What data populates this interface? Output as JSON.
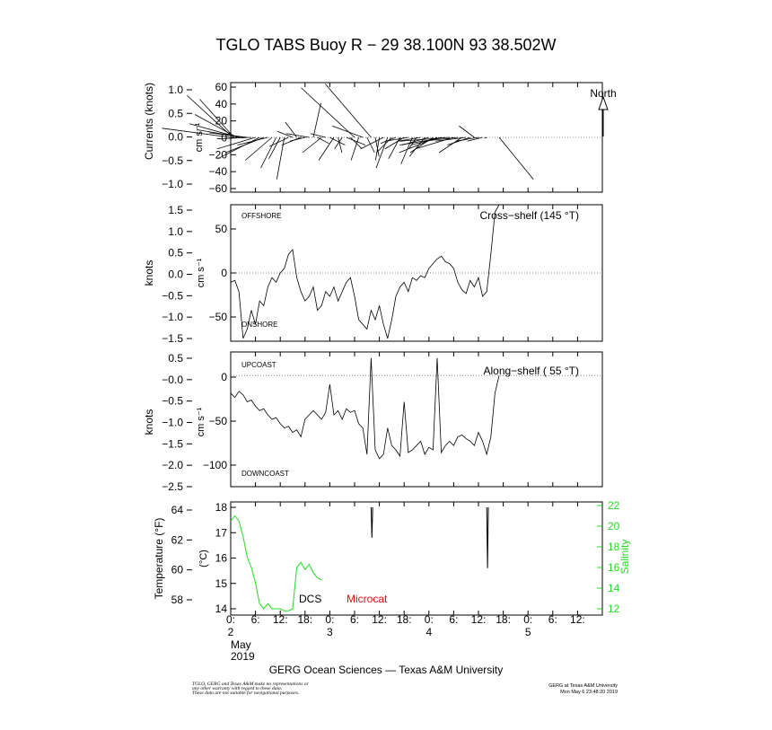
{
  "title": "TGLO TABS Buoy R − 29 38.100N  93 38.502W",
  "footer": {
    "institution": "GERG Ocean Sciences — Texas A&M University",
    "disclaimer": [
      "TGLO, GERG and Texas A&M make no representations or",
      "any other warranty with regard to these data.",
      "These data are not suitable for navigational purposes."
    ],
    "credit": "GERG at Texas A&M University",
    "timestamp": "Mon May  6 23:48:20 2019"
  },
  "colors": {
    "axes": "#000000",
    "salinity": "#22dd22",
    "microcat": "#dd1111",
    "zero_line": "#888888"
  },
  "x_axis": {
    "range": [
      0,
      90
    ],
    "ticks": [
      {
        "x": 0,
        "label": "0:",
        "day": "2"
      },
      {
        "x": 6,
        "label": "6:",
        "day": ""
      },
      {
        "x": 12,
        "label": "12:",
        "day": ""
      },
      {
        "x": 18,
        "label": "18:",
        "day": ""
      },
      {
        "x": 24,
        "label": "0:",
        "day": "3"
      },
      {
        "x": 30,
        "label": "6:",
        "day": ""
      },
      {
        "x": 36,
        "label": "12:",
        "day": ""
      },
      {
        "x": 42,
        "label": "18:",
        "day": ""
      },
      {
        "x": 48,
        "label": "0:",
        "day": "4"
      },
      {
        "x": 54,
        "label": "6:",
        "day": ""
      },
      {
        "x": 60,
        "label": "12:",
        "day": ""
      },
      {
        "x": 66,
        "label": "18:",
        "day": ""
      },
      {
        "x": 72,
        "label": "0:",
        "day": "5"
      },
      {
        "x": 78,
        "label": "6:",
        "day": ""
      },
      {
        "x": 84,
        "label": "12:",
        "day": ""
      }
    ],
    "month": "May",
    "year": "2019"
  },
  "chart_data": [
    {
      "type": "line",
      "panel": "currents",
      "title": "",
      "left_label": "Currents (knots)",
      "right_label": "cm s⁻¹",
      "left_ticks": [
        "1.0",
        "0.5",
        "0.0",
        "−0.5",
        "−1.0"
      ],
      "right_ticks": [
        "60",
        "40",
        "20",
        "0",
        "−20",
        "−40",
        "−60"
      ],
      "ylim": [
        -65,
        65
      ],
      "north_label": "North",
      "vectors": [
        {
          "t": 0,
          "u": -90,
          "v": 12
        },
        {
          "t": 0.5,
          "u": -60,
          "v": 55
        },
        {
          "t": 0.8,
          "u": -45,
          "v": 50
        },
        {
          "t": 1.5,
          "u": -55,
          "v": 30
        },
        {
          "t": 2,
          "u": -65,
          "v": 18
        },
        {
          "t": 3,
          "u": -60,
          "v": 10
        },
        {
          "t": 4,
          "u": -50,
          "v": 6
        },
        {
          "t": 5,
          "u": -45,
          "v": -2
        },
        {
          "t": 6,
          "u": -50,
          "v": -15
        },
        {
          "t": 7,
          "u": -55,
          "v": -28
        },
        {
          "t": 8,
          "u": -50,
          "v": -20
        },
        {
          "t": 9,
          "u": -40,
          "v": -10
        },
        {
          "t": 10,
          "u": -35,
          "v": -30
        },
        {
          "t": 11,
          "u": -20,
          "v": -40
        },
        {
          "t": 12,
          "u": -15,
          "v": -28
        },
        {
          "t": 13,
          "u": -10,
          "v": -55
        },
        {
          "t": 14,
          "u": -25,
          "v": -12
        },
        {
          "t": 15,
          "u": -20,
          "v": 8
        },
        {
          "t": 16,
          "u": -15,
          "v": 20
        },
        {
          "t": 17,
          "u": -25,
          "v": -10
        },
        {
          "t": 18,
          "u": -20,
          "v": -5
        },
        {
          "t": 19,
          "u": -30,
          "v": 5
        },
        {
          "t": 20,
          "u": 10,
          "v": 45
        },
        {
          "t": 21,
          "u": 15,
          "v": -8
        },
        {
          "t": 22,
          "u": -25,
          "v": -20
        },
        {
          "t": 23,
          "u": -20,
          "v": 5
        },
        {
          "t": 24,
          "u": 20,
          "v": -10
        },
        {
          "t": 25,
          "u": -20,
          "v": -30
        },
        {
          "t": 26,
          "u": 5,
          "v": -20
        },
        {
          "t": 27,
          "u": -10,
          "v": -15
        },
        {
          "t": 28,
          "u": 25,
          "v": -10
        },
        {
          "t": 29,
          "u": 15,
          "v": -15
        },
        {
          "t": 30,
          "u": -70,
          "v": 65
        },
        {
          "t": 31,
          "u": -10,
          "v": -30
        },
        {
          "t": 32,
          "u": -40,
          "v": 15
        },
        {
          "t": 33,
          "u": 10,
          "v": -20
        },
        {
          "t": 34,
          "u": -60,
          "v": 70
        },
        {
          "t": 35,
          "u": 5,
          "v": -25
        },
        {
          "t": 36,
          "u": -5,
          "v": -30
        },
        {
          "t": 37,
          "u": -30,
          "v": -15
        },
        {
          "t": 38,
          "u": -15,
          "v": -40
        },
        {
          "t": 39,
          "u": -20,
          "v": -20
        },
        {
          "t": 40,
          "u": -20,
          "v": -8
        },
        {
          "t": 41,
          "u": -15,
          "v": -28
        },
        {
          "t": 42,
          "u": -25,
          "v": -15
        },
        {
          "t": 43,
          "u": -30,
          "v": -5
        },
        {
          "t": 44,
          "u": -15,
          "v": -35
        },
        {
          "t": 45,
          "u": -10,
          "v": -15
        },
        {
          "t": 46,
          "u": -30,
          "v": -5
        },
        {
          "t": 47,
          "u": -20,
          "v": -25
        },
        {
          "t": 48,
          "u": -35,
          "v": -10
        },
        {
          "t": 49,
          "u": -30,
          "v": -20
        },
        {
          "t": 50,
          "u": -50,
          "v": -20
        },
        {
          "t": 51,
          "u": -40,
          "v": -10
        },
        {
          "t": 52,
          "u": -60,
          "v": -10
        },
        {
          "t": 53,
          "u": -65,
          "v": -5
        },
        {
          "t": 54,
          "u": -50,
          "v": -15
        },
        {
          "t": 55,
          "u": -45,
          "v": -5
        },
        {
          "t": 56,
          "u": -30,
          "v": -20
        },
        {
          "t": 57,
          "u": -40,
          "v": -5
        },
        {
          "t": 58,
          "u": -30,
          "v": -10
        },
        {
          "t": 59,
          "u": -20,
          "v": 15
        },
        {
          "t": 60,
          "u": -30,
          "v": -5
        },
        {
          "t": 61,
          "u": -20,
          "v": -5
        },
        {
          "t": 62,
          "u": -3,
          "v": -1
        },
        {
          "t": 65,
          "u": 45,
          "v": -55
        }
      ]
    },
    {
      "type": "line",
      "panel": "cross-shelf",
      "title": "Cross−shelf (145 °T)",
      "left_label": "knots",
      "right_label": "cm s⁻¹",
      "left_ticks": [
        "1.5",
        "1.0",
        "0.5",
        "0.0",
        "−0.5",
        "−1.0",
        "−1.5"
      ],
      "right_ticks": [
        "50",
        "0",
        "−50"
      ],
      "ylim": [
        -73,
        73
      ],
      "top_label": "OFFSHORE",
      "bottom_label": "ONSHORE",
      "x": [
        0,
        1,
        2,
        3,
        4,
        5,
        6,
        7,
        8,
        9,
        10,
        11,
        12,
        13,
        14,
        15,
        16,
        17,
        18,
        19,
        20,
        21,
        22,
        23,
        24,
        25,
        26,
        27,
        28,
        29,
        30,
        31,
        32,
        33,
        34,
        35,
        36,
        37,
        38,
        39,
        40,
        41,
        42,
        43,
        44,
        45,
        46,
        47,
        48,
        49,
        50,
        51,
        52,
        53,
        54,
        55,
        56,
        57,
        58,
        59,
        60,
        61,
        62,
        63,
        64,
        65
      ],
      "y": [
        -10,
        -8,
        -20,
        -70,
        -60,
        -40,
        -55,
        -30,
        -35,
        -15,
        -5,
        -10,
        0,
        5,
        20,
        25,
        -5,
        -20,
        -30,
        -25,
        -15,
        -40,
        -35,
        -20,
        -25,
        -15,
        -30,
        -20,
        -10,
        -5,
        -25,
        -50,
        -55,
        -60,
        -40,
        -50,
        -35,
        -55,
        -70,
        -50,
        -25,
        -15,
        -10,
        -20,
        -5,
        -8,
        -3,
        -5,
        5,
        10,
        15,
        18,
        12,
        10,
        5,
        -10,
        -18,
        -22,
        -8,
        -15,
        -5,
        -25,
        -20,
        20,
        65,
        75
      ]
    },
    {
      "type": "line",
      "panel": "along-shelf",
      "title": "Along−shelf ( 55 °T)",
      "left_label": "knots",
      "right_label": "cm s⁻¹",
      "left_ticks": [
        "0.5",
        "−0.0",
        "−0.5",
        "−1.0",
        "−1.5",
        "−2.0",
        "−2.5"
      ],
      "right_ticks": [
        "0",
        "−50",
        "−100"
      ],
      "ylim": [
        -127,
        27
      ],
      "top_label": "UPCOAST",
      "bottom_label": "DOWNCOAST",
      "x": [
        0,
        1,
        2,
        3,
        4,
        5,
        6,
        7,
        8,
        9,
        10,
        11,
        12,
        13,
        14,
        15,
        16,
        17,
        18,
        19,
        20,
        21,
        22,
        23,
        24,
        25,
        26,
        27,
        28,
        29,
        30,
        31,
        32,
        33,
        34,
        35,
        36,
        37,
        38,
        39,
        40,
        41,
        42,
        43,
        44,
        45,
        46,
        47,
        48,
        49,
        50,
        51,
        52,
        53,
        54,
        55,
        56,
        57,
        58,
        59,
        60,
        61,
        62,
        63,
        64,
        65
      ],
      "y": [
        -20,
        -25,
        -18,
        -22,
        -30,
        -28,
        -35,
        -40,
        -38,
        -45,
        -50,
        -48,
        -55,
        -60,
        -58,
        -65,
        -62,
        -70,
        -50,
        -45,
        -40,
        -45,
        -50,
        -42,
        -10,
        -45,
        -40,
        -50,
        -38,
        -42,
        -40,
        -55,
        -60,
        -90,
        20,
        -85,
        -95,
        -90,
        -60,
        -80,
        -85,
        -92,
        -30,
        -88,
        -85,
        -80,
        -75,
        -90,
        -82,
        -85,
        20,
        -88,
        -80,
        -75,
        -80,
        -70,
        -68,
        -72,
        -75,
        -80,
        -65,
        -75,
        -90,
        -70,
        -20,
        0
      ]
    },
    {
      "type": "line",
      "panel": "temperature-salinity",
      "title": "",
      "left_label": "Temperature (°F)",
      "mid_label": "(°C)",
      "right_label": "Salinity",
      "left_ticks": [
        "64",
        "62",
        "60",
        "58"
      ],
      "mid_ticks": [
        "18",
        "17",
        "16",
        "15",
        "14"
      ],
      "right_ticks": [
        "22",
        "20",
        "18",
        "16",
        "14",
        "12"
      ],
      "series_labels": [
        "DCS",
        "Microcat"
      ],
      "salinity": {
        "name": "Salinity",
        "x": [
          0,
          1,
          2,
          3,
          4,
          5,
          6,
          7,
          8,
          9,
          10,
          11,
          12,
          13,
          14,
          15,
          16,
          17,
          18,
          19,
          20,
          21,
          22
        ],
        "y": [
          20.5,
          21,
          20.5,
          19,
          17,
          16,
          14.5,
          12.5,
          12,
          12.5,
          12,
          12,
          12,
          11.8,
          11.8,
          12,
          16,
          16.5,
          15.8,
          16.3,
          15.5,
          15,
          14.8
        ]
      },
      "temperature_c": {
        "name": "Temperature",
        "segments": [
          {
            "x": [
              34,
              34.2,
              34.4
            ],
            "y": [
              18.0,
              16.8,
              18.0
            ]
          },
          {
            "x": [
              62,
              62.2,
              62.4
            ],
            "y": [
              18.0,
              15.6,
              18.0
            ]
          }
        ]
      },
      "ylim_c": [
        13.8,
        18.1
      ]
    }
  ]
}
